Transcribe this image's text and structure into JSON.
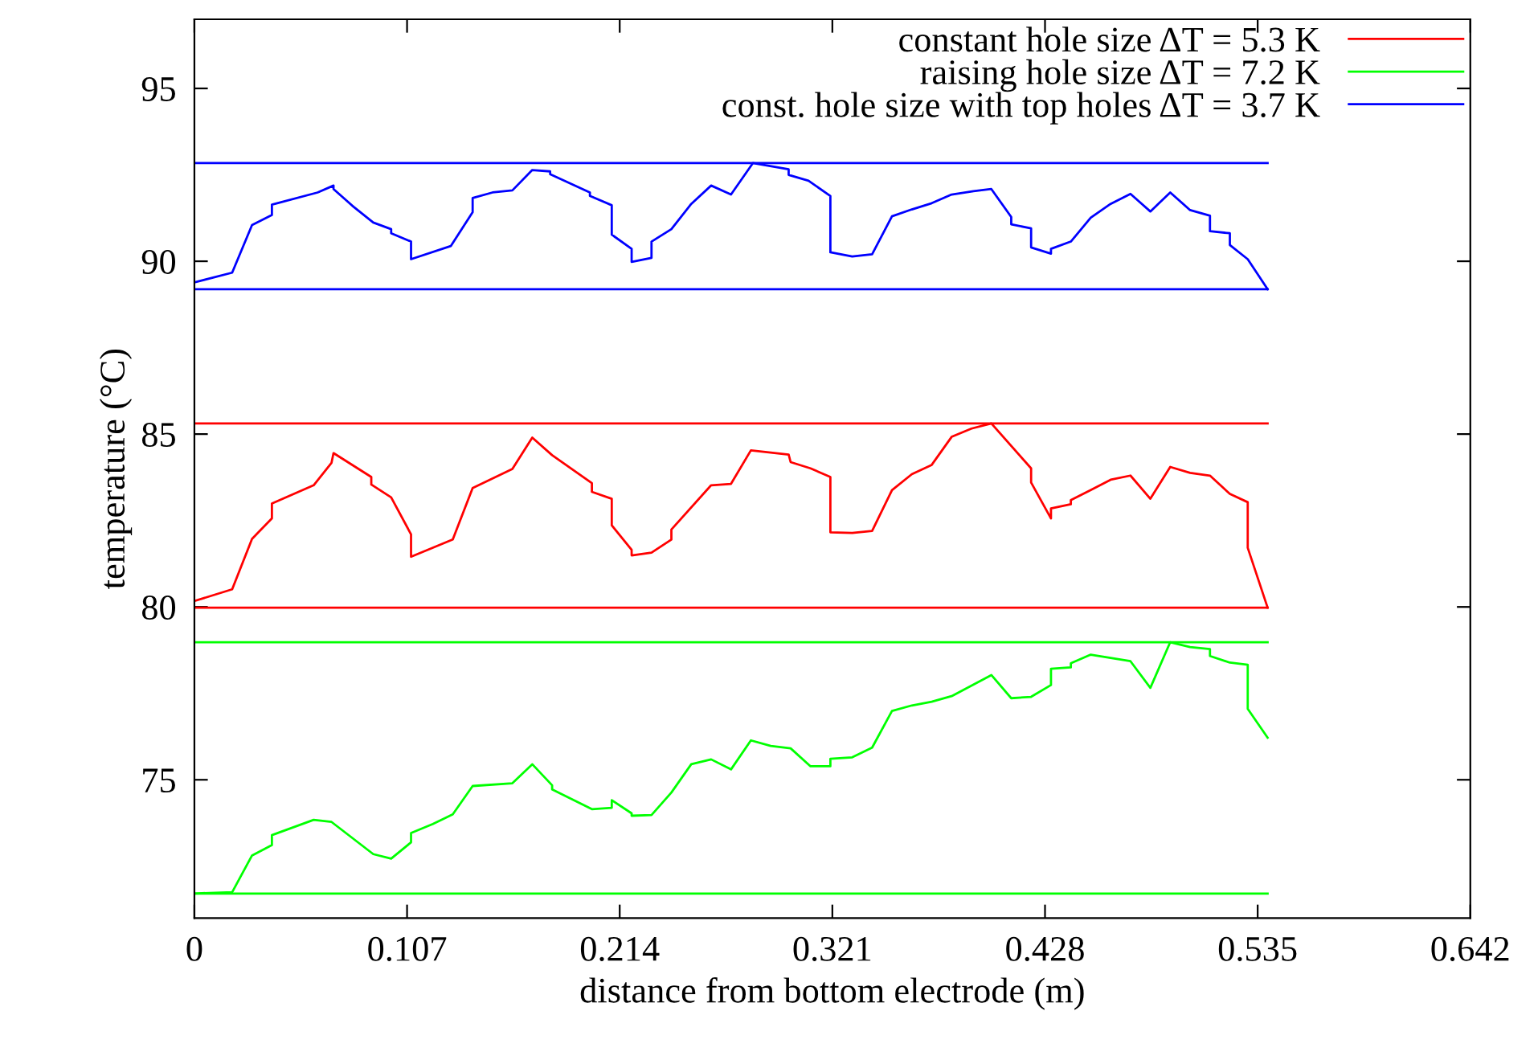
{
  "chart_data": {
    "type": "line",
    "xlabel": "distance from bottom electrode (m)",
    "ylabel": "temperature (°C)",
    "xlim": [
      0,
      0.642
    ],
    "xticks": [
      0,
      0.107,
      0.214,
      0.321,
      0.428,
      0.535,
      0.642
    ],
    "ylim": [
      71,
      97
    ],
    "yticks": [
      75,
      80,
      85,
      90,
      95
    ],
    "legend": "top right",
    "marker": "none",
    "line_style": "solid",
    "series": [
      {
        "name": "constant hole size ΔT = 5.3 K",
        "color": "#ff0000",
        "x": [
          0,
          0.019,
          0.029,
          0.039,
          0.039,
          0.06,
          0.069,
          0.07,
          0.089,
          0.089,
          0.099,
          0.109,
          0.109,
          0.13,
          0.14,
          0.16,
          0.17,
          0.18,
          0.2,
          0.2,
          0.21,
          0.21,
          0.22,
          0.22,
          0.23,
          0.24,
          0.24,
          0.26,
          0.27,
          0.28,
          0.299,
          0.3,
          0.31,
          0.32,
          0.32,
          0.331,
          0.341,
          0.351,
          0.361,
          0.371,
          0.381,
          0.391,
          0.401,
          0.421,
          0.421,
          0.431,
          0.431,
          0.441,
          0.441,
          0.451,
          0.461,
          0.471,
          0.481,
          0.491,
          0.501,
          0.511,
          0.521,
          0.53,
          0.53,
          0.54
        ],
        "values": [
          80.17,
          80.51,
          81.97,
          82.56,
          82.99,
          83.52,
          84.17,
          84.45,
          83.76,
          83.54,
          83.17,
          82.1,
          81.45,
          81.95,
          83.44,
          83.99,
          84.9,
          84.39,
          83.58,
          83.33,
          83.13,
          82.36,
          81.65,
          81.49,
          81.57,
          81.95,
          82.24,
          83.52,
          83.56,
          84.53,
          84.41,
          84.19,
          84.01,
          83.76,
          82.16,
          82.14,
          82.2,
          83.38,
          83.84,
          84.11,
          84.92,
          85.16,
          85.31,
          84.01,
          83.6,
          82.56,
          82.85,
          82.97,
          83.09,
          83.38,
          83.68,
          83.8,
          83.13,
          84.05,
          83.88,
          83.8,
          83.27,
          83.03,
          81.71,
          79.98
        ]
      },
      {
        "name": "raising hole size ΔT = 7.2 K",
        "color": "#00ff00",
        "x": [
          0,
          0.019,
          0.029,
          0.039,
          0.039,
          0.06,
          0.069,
          0.09,
          0.099,
          0.109,
          0.109,
          0.12,
          0.13,
          0.14,
          0.16,
          0.17,
          0.18,
          0.18,
          0.2,
          0.21,
          0.21,
          0.22,
          0.22,
          0.23,
          0.24,
          0.25,
          0.26,
          0.27,
          0.28,
          0.29,
          0.3,
          0.31,
          0.32,
          0.32,
          0.331,
          0.341,
          0.351,
          0.361,
          0.371,
          0.381,
          0.401,
          0.411,
          0.421,
          0.431,
          0.431,
          0.441,
          0.441,
          0.451,
          0.471,
          0.481,
          0.491,
          0.501,
          0.511,
          0.511,
          0.521,
          0.53,
          0.53,
          0.54
        ],
        "values": [
          71.71,
          71.75,
          72.81,
          73.11,
          73.4,
          73.84,
          73.78,
          72.85,
          72.72,
          73.19,
          73.46,
          73.72,
          74.0,
          74.82,
          74.9,
          75.45,
          74.84,
          74.72,
          74.15,
          74.19,
          74.41,
          74.03,
          73.96,
          73.98,
          74.63,
          75.45,
          75.59,
          75.3,
          76.14,
          75.98,
          75.91,
          75.39,
          75.39,
          75.61,
          75.65,
          75.93,
          76.99,
          77.15,
          77.26,
          77.42,
          78.03,
          77.36,
          77.4,
          77.74,
          78.21,
          78.25,
          78.37,
          78.62,
          78.43,
          77.66,
          78.98,
          78.84,
          78.78,
          78.58,
          78.39,
          78.33,
          77.05,
          76.22
        ]
      },
      {
        "name": "const. hole size with top holes ΔT = 3.7 K",
        "color": "#0000ff",
        "x": [
          0,
          0.019,
          0.029,
          0.039,
          0.039,
          0.062,
          0.07,
          0.07,
          0.08,
          0.09,
          0.099,
          0.099,
          0.109,
          0.109,
          0.129,
          0.14,
          0.14,
          0.15,
          0.16,
          0.17,
          0.179,
          0.179,
          0.199,
          0.199,
          0.21,
          0.21,
          0.22,
          0.22,
          0.23,
          0.23,
          0.24,
          0.25,
          0.26,
          0.27,
          0.281,
          0.299,
          0.299,
          0.309,
          0.32,
          0.32,
          0.331,
          0.341,
          0.351,
          0.361,
          0.371,
          0.381,
          0.392,
          0.401,
          0.411,
          0.411,
          0.421,
          0.421,
          0.431,
          0.431,
          0.441,
          0.451,
          0.461,
          0.471,
          0.481,
          0.491,
          0.501,
          0.511,
          0.511,
          0.521,
          0.521,
          0.53,
          0.54
        ],
        "values": [
          89.39,
          89.67,
          91.05,
          91.34,
          91.64,
          91.99,
          92.19,
          92.09,
          91.58,
          91.12,
          90.93,
          90.81,
          90.57,
          90.06,
          90.44,
          91.42,
          91.83,
          91.99,
          92.05,
          92.64,
          92.6,
          92.52,
          91.99,
          91.89,
          91.62,
          90.77,
          90.36,
          89.98,
          90.1,
          90.57,
          90.93,
          91.66,
          92.19,
          91.93,
          92.84,
          92.66,
          92.5,
          92.33,
          91.89,
          90.26,
          90.14,
          90.2,
          91.3,
          91.5,
          91.68,
          91.93,
          92.03,
          92.09,
          91.28,
          91.07,
          90.95,
          90.4,
          90.22,
          90.36,
          90.57,
          91.26,
          91.66,
          91.95,
          91.44,
          91.99,
          91.48,
          91.32,
          90.87,
          90.81,
          90.47,
          90.06,
          89.19
        ]
      },
      {
        "color": "#ff0000",
        "x": [
          0,
          0.54
        ],
        "values": [
          85.31,
          85.31
        ]
      },
      {
        "color": "#ff0000",
        "x": [
          0,
          0.54
        ],
        "values": [
          79.98,
          79.98
        ]
      },
      {
        "color": "#00ff00",
        "x": [
          0,
          0.54
        ],
        "values": [
          78.98,
          78.98
        ]
      },
      {
        "color": "#00ff00",
        "x": [
          0,
          0.54
        ],
        "values": [
          71.71,
          71.71
        ]
      },
      {
        "color": "#0000ff",
        "x": [
          0,
          0.54
        ],
        "values": [
          92.84,
          92.84
        ]
      },
      {
        "color": "#0000ff",
        "x": [
          0,
          0.54
        ],
        "values": [
          89.19,
          89.19
        ]
      }
    ]
  }
}
